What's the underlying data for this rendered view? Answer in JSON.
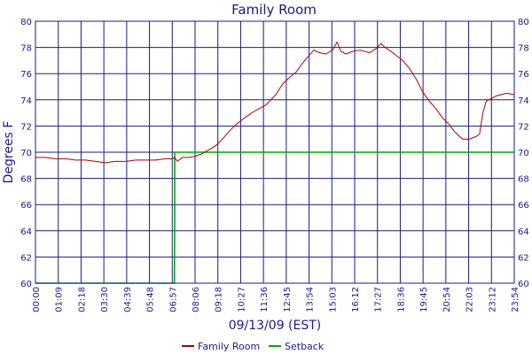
{
  "chart_data": {
    "type": "line",
    "title": "Family Room",
    "xlabel": "09/13/09 (EST)",
    "ylabel": "Degrees F",
    "ylim": [
      60,
      80
    ],
    "xlim": [
      "00:00",
      "23:54"
    ],
    "grid": true,
    "legend_position": "bottom",
    "y_ticks": [
      60,
      62,
      64,
      66,
      68,
      70,
      72,
      74,
      76,
      78,
      80
    ],
    "x_ticks": [
      "00:00",
      "01:09",
      "02:18",
      "03:30",
      "04:39",
      "05:48",
      "06:57",
      "08:06",
      "09:18",
      "10:27",
      "11:36",
      "12:45",
      "13:54",
      "15:03",
      "16:12",
      "17:27",
      "18:36",
      "19:45",
      "20:54",
      "22:03",
      "23:12",
      "23:54"
    ],
    "colors": {
      "frame": "#1a1a8c",
      "grid": "#1a1a8c",
      "family_room": "#aa0000",
      "setback": "#00aa00"
    },
    "series": [
      {
        "name": "Family Room",
        "x": [
          "00:00",
          "00:30",
          "01:00",
          "01:30",
          "02:00",
          "02:30",
          "03:00",
          "03:30",
          "04:00",
          "04:30",
          "05:00",
          "05:30",
          "06:00",
          "06:30",
          "06:50",
          "06:57",
          "07:05",
          "07:20",
          "07:40",
          "08:00",
          "08:20",
          "08:40",
          "09:00",
          "09:20",
          "09:40",
          "10:00",
          "10:30",
          "11:00",
          "11:30",
          "12:00",
          "12:20",
          "12:45",
          "13:00",
          "13:20",
          "13:40",
          "13:54",
          "14:10",
          "14:30",
          "14:50",
          "15:03",
          "15:15",
          "15:30",
          "15:50",
          "16:12",
          "16:40",
          "17:00",
          "17:15",
          "17:27",
          "17:45",
          "18:00",
          "18:20",
          "18:40",
          "19:00",
          "19:20",
          "19:40",
          "20:00",
          "20:20",
          "20:40",
          "20:54",
          "21:10",
          "21:20",
          "21:40",
          "22:00",
          "22:10",
          "22:20",
          "22:30",
          "23:00",
          "23:30",
          "23:54"
        ],
        "values": [
          69.6,
          69.6,
          69.5,
          69.5,
          69.4,
          69.4,
          69.3,
          69.2,
          69.3,
          69.3,
          69.4,
          69.4,
          69.4,
          69.5,
          69.5,
          69.6,
          69.3,
          69.6,
          69.6,
          69.7,
          69.9,
          70.2,
          70.5,
          71.0,
          71.6,
          72.1,
          72.7,
          73.2,
          73.6,
          74.4,
          75.2,
          75.8,
          76.1,
          76.8,
          77.4,
          77.8,
          77.6,
          77.5,
          77.8,
          78.4,
          77.7,
          77.5,
          77.7,
          77.8,
          77.6,
          77.9,
          78.3,
          78.0,
          77.7,
          77.4,
          77.0,
          76.4,
          75.6,
          74.6,
          73.9,
          73.3,
          72.6,
          72.1,
          71.6,
          71.2,
          71.0,
          71.0,
          71.2,
          71.4,
          73.0,
          73.9,
          74.3,
          74.5,
          74.4
        ]
      },
      {
        "name": "Setback",
        "x": [
          "00:00",
          "06:56",
          "06:57",
          "06:57",
          "23:54"
        ],
        "values": [
          60,
          60,
          65,
          70,
          70
        ]
      }
    ]
  }
}
